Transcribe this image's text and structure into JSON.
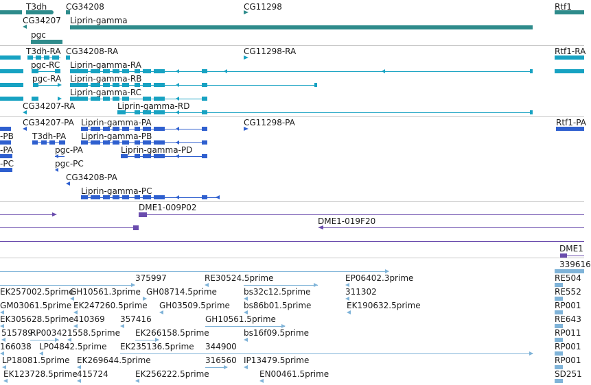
{
  "colors": {
    "gene": "#2e8b8b",
    "transcript": "#17a2c2",
    "protein": "#2e5fcf",
    "cdna": "#6a4cad",
    "est": "#7fb3d8"
  },
  "tracks": {
    "genes": {
      "labels": [
        {
          "id": "g1",
          "text": "T3dh"
        },
        {
          "id": "g2",
          "text": "CG34208"
        },
        {
          "id": "g3",
          "text": "CG11298"
        },
        {
          "id": "g4",
          "text": "Rtf1"
        },
        {
          "id": "g5",
          "text": "CG34207"
        },
        {
          "id": "g6",
          "text": "Liprin-gamma"
        },
        {
          "id": "g7",
          "text": "pgc"
        }
      ]
    },
    "transcripts": {
      "labels": [
        {
          "id": "t1",
          "text": "T3dh-RA"
        },
        {
          "id": "t2",
          "text": "CG34208-RA"
        },
        {
          "id": "t3",
          "text": "CG11298-RA"
        },
        {
          "id": "t4",
          "text": "Rtf1-RA"
        },
        {
          "id": "t5",
          "text": "pgc-RC"
        },
        {
          "id": "t6",
          "text": "Liprin-gamma-RA"
        },
        {
          "id": "t7",
          "text": "pgc-RA"
        },
        {
          "id": "t8",
          "text": "Liprin-gamma-RB"
        },
        {
          "id": "t9",
          "text": "Liprin-gamma-RC"
        },
        {
          "id": "t10",
          "text": "CG34207-RA"
        },
        {
          "id": "t11",
          "text": "Liprin-gamma-RD"
        }
      ]
    },
    "proteins": {
      "labels": [
        {
          "id": "p1",
          "text": "CG34207-PA"
        },
        {
          "id": "p2",
          "text": "Liprin-gamma-PA"
        },
        {
          "id": "p3",
          "text": "CG11298-PA"
        },
        {
          "id": "p4",
          "text": "Rtf1-PA"
        },
        {
          "id": "p5",
          "text": "-PB"
        },
        {
          "id": "p6",
          "text": "T3dh-PA"
        },
        {
          "id": "p7",
          "text": "Liprin-gamma-PB"
        },
        {
          "id": "p8",
          "text": "-PA"
        },
        {
          "id": "p9",
          "text": "pgc-PA"
        },
        {
          "id": "p10",
          "text": "Liprin-gamma-PD"
        },
        {
          "id": "p11",
          "text": "-PC"
        },
        {
          "id": "p12",
          "text": "pgc-PC"
        },
        {
          "id": "p13",
          "text": "CG34208-PA"
        },
        {
          "id": "p14",
          "text": "Liprin-gamma-PC"
        }
      ]
    },
    "cdna": {
      "labels": [
        {
          "id": "c1",
          "text": "DME1-009P02"
        },
        {
          "id": "c2",
          "text": "DME1-019F20"
        },
        {
          "id": "c3",
          "text": "DME1"
        }
      ]
    },
    "est": {
      "labels": [
        {
          "id": "e1",
          "text": "339616"
        },
        {
          "id": "e2",
          "text": "375997"
        },
        {
          "id": "e3",
          "text": "RE30524.5prime"
        },
        {
          "id": "e4",
          "text": "EP06402.3prime"
        },
        {
          "id": "e5",
          "text": "RE504"
        },
        {
          "id": "e6",
          "text": "EK257002.5prime"
        },
        {
          "id": "e7",
          "text": "GH10561.3prime"
        },
        {
          "id": "e8",
          "text": "GH08714.5prime"
        },
        {
          "id": "e9",
          "text": "bs32c12.5prime"
        },
        {
          "id": "e10",
          "text": "311302"
        },
        {
          "id": "e11",
          "text": "RE552"
        },
        {
          "id": "e12",
          "text": "GM03061.5prime"
        },
        {
          "id": "e13",
          "text": "EK247260.5prime"
        },
        {
          "id": "e14",
          "text": "GH03509.5prime"
        },
        {
          "id": "e15",
          "text": "bs86b01.5prime"
        },
        {
          "id": "e16",
          "text": "EK190632.5prime"
        },
        {
          "id": "e17",
          "text": "RP001"
        },
        {
          "id": "e18",
          "text": "EK305628.5prime"
        },
        {
          "id": "e19",
          "text": "410369"
        },
        {
          "id": "e20",
          "text": "357416"
        },
        {
          "id": "e21",
          "text": "GH10561.5prime"
        },
        {
          "id": "e22",
          "text": "RE643"
        },
        {
          "id": "e23",
          "text": "515789"
        },
        {
          "id": "e24",
          "text": "RP00342"
        },
        {
          "id": "e25",
          "text": "1558.5prime"
        },
        {
          "id": "e26",
          "text": "EK266158.5prime"
        },
        {
          "id": "e27",
          "text": "bs16f09.5prime"
        },
        {
          "id": "e28",
          "text": "RP011"
        },
        {
          "id": "e29",
          "text": "166038"
        },
        {
          "id": "e30",
          "text": "LP04842.5prime"
        },
        {
          "id": "e31",
          "text": "EK235136.5prime"
        },
        {
          "id": "e32",
          "text": "344900"
        },
        {
          "id": "e33",
          "text": "RP001"
        },
        {
          "id": "e34",
          "text": "LP18081.5prime"
        },
        {
          "id": "e35",
          "text": "EK269644.5prime"
        },
        {
          "id": "e36",
          "text": "316560"
        },
        {
          "id": "e37",
          "text": "IP13479.5prime"
        },
        {
          "id": "e38",
          "text": "RP001"
        },
        {
          "id": "e39",
          "text": "EK123728.5prime"
        },
        {
          "id": "e40",
          "text": "415724"
        },
        {
          "id": "e41",
          "text": "EK256222.5prime"
        },
        {
          "id": "e42",
          "text": "EN00461.5prime"
        },
        {
          "id": "e43",
          "text": "SD251"
        }
      ]
    }
  }
}
